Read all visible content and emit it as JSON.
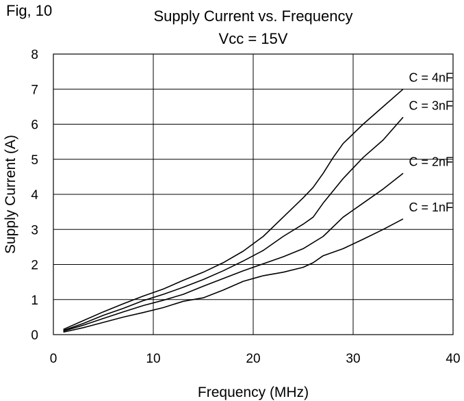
{
  "figure_label": "Fig, 10",
  "chart_data": {
    "type": "line",
    "title": "Supply Current vs. Frequency",
    "subtitle": "Vcc = 15V",
    "xlabel": "Frequency (MHz)",
    "ylabel": "Supply Current (A)",
    "xlim": [
      0,
      40
    ],
    "ylim": [
      0,
      8
    ],
    "xticks": [
      0,
      10,
      20,
      30,
      40
    ],
    "yticks": [
      0,
      1,
      2,
      3,
      4,
      5,
      6,
      7,
      8
    ],
    "grid": true,
    "legend": "inline labels at right end of each line",
    "line_color": "#000000",
    "series": [
      {
        "name": "C = 4nF",
        "x": [
          1,
          3,
          5,
          7,
          9,
          11,
          13,
          15,
          17,
          19,
          21,
          23,
          25,
          26,
          27,
          28,
          29,
          31,
          33,
          35
        ],
        "y": [
          0.15,
          0.4,
          0.65,
          0.88,
          1.1,
          1.3,
          1.55,
          1.78,
          2.05,
          2.38,
          2.8,
          3.35,
          3.9,
          4.2,
          4.6,
          5.05,
          5.45,
          6.0,
          6.5,
          7.0
        ]
      },
      {
        "name": "C = 3nF",
        "x": [
          1,
          3,
          5,
          7,
          9,
          11,
          13,
          15,
          17,
          19,
          21,
          23,
          25,
          26,
          27,
          28,
          29,
          31,
          33,
          35
        ],
        "y": [
          0.12,
          0.32,
          0.55,
          0.75,
          0.97,
          1.15,
          1.35,
          1.57,
          1.82,
          2.1,
          2.4,
          2.8,
          3.15,
          3.35,
          3.75,
          4.1,
          4.45,
          5.05,
          5.55,
          6.2
        ]
      },
      {
        "name": "C = 2nF",
        "x": [
          1,
          3,
          5,
          7,
          9,
          11,
          13,
          15,
          17,
          19,
          21,
          23,
          25,
          27,
          29,
          31,
          33,
          35
        ],
        "y": [
          0.1,
          0.27,
          0.46,
          0.65,
          0.83,
          0.98,
          1.15,
          1.38,
          1.6,
          1.82,
          2.02,
          2.22,
          2.45,
          2.8,
          3.35,
          3.75,
          4.15,
          4.6
        ]
      },
      {
        "name": "C = 1nF",
        "x": [
          1,
          3,
          5,
          7,
          9,
          11,
          13,
          15,
          17,
          19,
          21,
          23,
          25,
          26,
          27,
          29,
          31,
          33,
          35
        ],
        "y": [
          0.07,
          0.2,
          0.35,
          0.5,
          0.63,
          0.77,
          0.95,
          1.05,
          1.27,
          1.52,
          1.68,
          1.78,
          1.92,
          2.05,
          2.25,
          2.45,
          2.72,
          3.0,
          3.3
        ]
      }
    ]
  }
}
